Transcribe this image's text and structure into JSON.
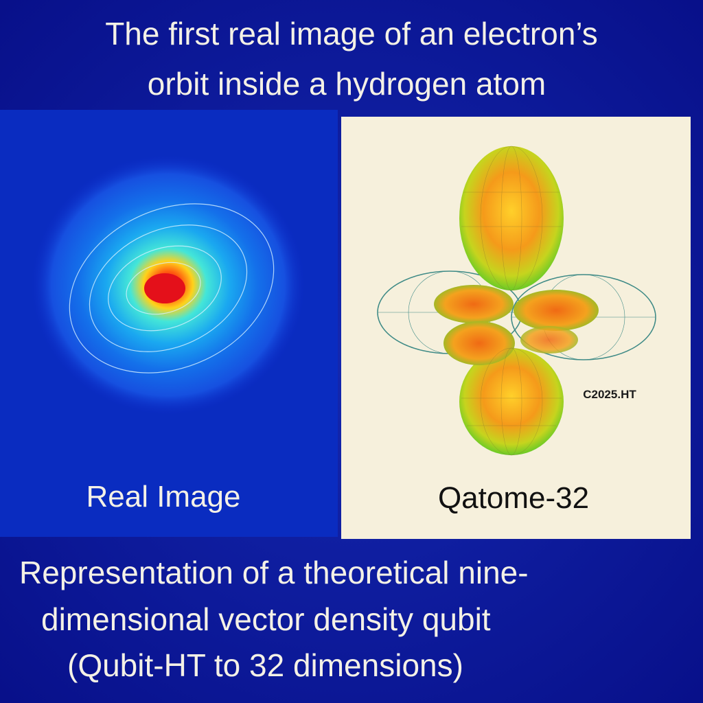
{
  "header": {
    "title_lines": [
      "The first real image of an electron’s",
      "orbit inside a hydrogen atom"
    ]
  },
  "panels": {
    "left_label": "Real Image",
    "right_label": "Qatome-32",
    "watermark": "C2025.HT"
  },
  "caption": {
    "lines": [
      "Representation of a theoretical nine-",
      "dimensional vector density qubit",
      "(Qubit-HT to 32 dimensions)"
    ]
  }
}
